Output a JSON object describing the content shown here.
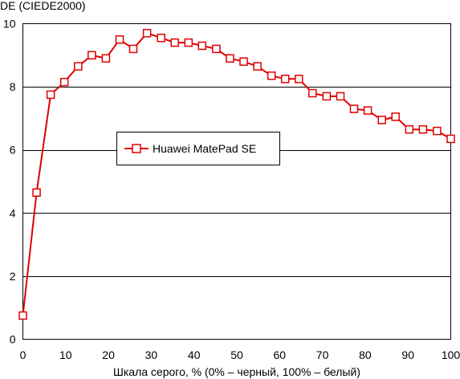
{
  "chart_data": {
    "type": "line",
    "ylabel": "DE (CIEDE2000)",
    "xlabel": "Шкала серого, % (0% – черный, 100% – белый)",
    "xlim": [
      0,
      100
    ],
    "ylim": [
      0,
      10
    ],
    "xticks": [
      0,
      10,
      20,
      30,
      40,
      50,
      60,
      70,
      80,
      90,
      100
    ],
    "yticks": [
      0,
      2,
      4,
      6,
      8,
      10
    ],
    "grid": "horizontal",
    "legend_position": "center-left",
    "colors": {
      "series": "#e00000",
      "grid": "#000000",
      "background": "#ffffff"
    },
    "series": [
      {
        "name": "Huawei MatePad SE",
        "marker": "square",
        "x": [
          0,
          3.2,
          6.5,
          9.7,
          12.9,
          16.1,
          19.4,
          22.6,
          25.8,
          29.0,
          32.3,
          35.5,
          38.7,
          41.9,
          45.2,
          48.4,
          51.6,
          54.8,
          58.1,
          61.3,
          64.5,
          67.7,
          71.0,
          74.2,
          77.4,
          80.6,
          83.9,
          87.1,
          90.3,
          93.5,
          96.8,
          100
        ],
        "y": [
          0.75,
          4.65,
          7.75,
          8.15,
          8.65,
          9.0,
          8.9,
          9.5,
          9.2,
          9.7,
          9.55,
          9.4,
          9.4,
          9.3,
          9.2,
          8.9,
          8.8,
          8.65,
          8.35,
          8.25,
          8.25,
          7.8,
          7.7,
          7.7,
          7.3,
          7.25,
          6.95,
          7.05,
          6.65,
          6.65,
          6.6,
          6.35
        ]
      }
    ]
  }
}
